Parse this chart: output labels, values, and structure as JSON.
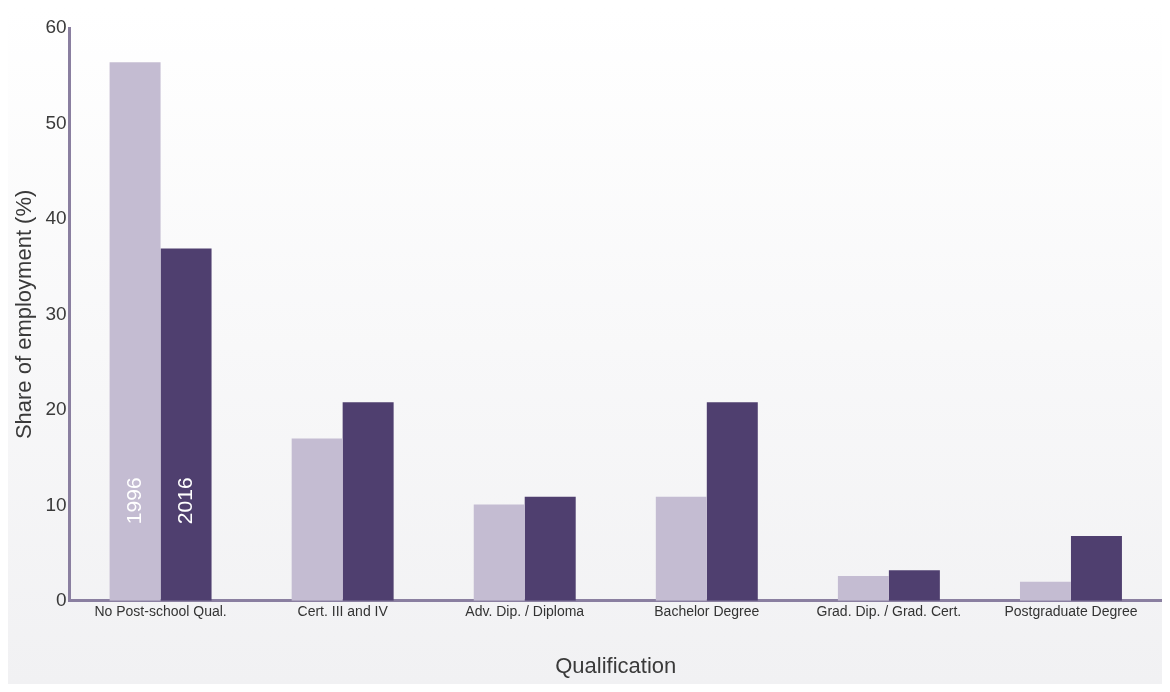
{
  "chart_data": {
    "type": "bar",
    "xlabel": "Qualification",
    "ylabel": "Share of employment (%)",
    "categories": [
      "No Post-school Qual.",
      "Cert. III and IV",
      "Adv. Dip. / Diploma",
      "Bachelor Degree",
      "Grad. Dip. / Grad. Cert.",
      "Postgraduate Degree"
    ],
    "series": [
      {
        "name": "1996",
        "color": "#c4bcd2",
        "values": [
          56.4,
          17.0,
          10.1,
          10.9,
          2.6,
          2.0
        ]
      },
      {
        "name": "2016",
        "color": "#4f3f6f",
        "values": [
          36.9,
          20.8,
          10.9,
          20.8,
          3.2,
          6.8
        ]
      }
    ],
    "ylim": [
      0,
      60
    ],
    "yticks": [
      0,
      10,
      20,
      30,
      40,
      50,
      60
    ],
    "grid": false,
    "legend": false
  }
}
